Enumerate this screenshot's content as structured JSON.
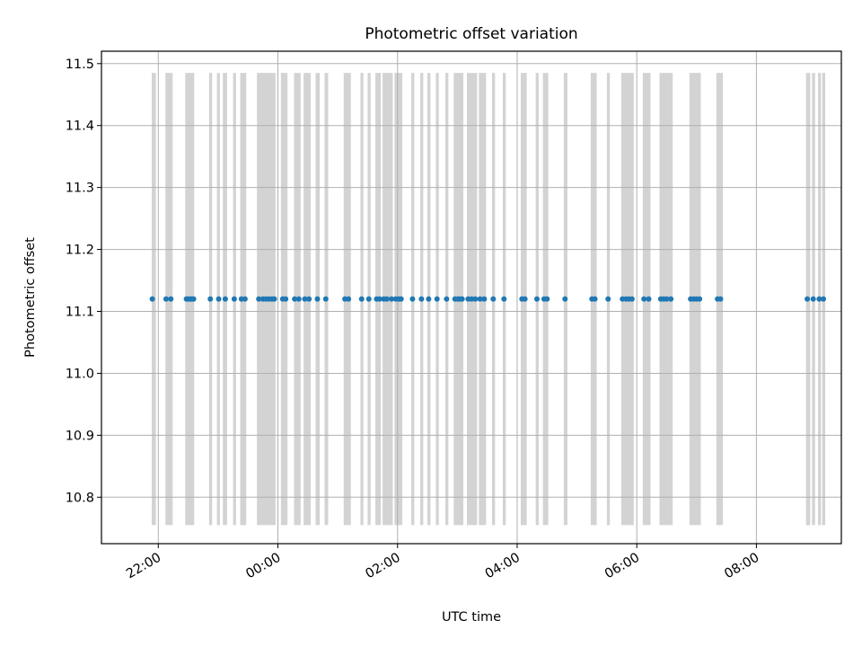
{
  "chart_data": {
    "type": "scatter",
    "title": "Photometric offset variation",
    "xlabel": "UTC time",
    "ylabel": "Photometric offset",
    "x_unit": "hours (UTC; values after 24 are the following day)",
    "xlim": [
      21.05,
      33.42
    ],
    "ylim": [
      10.725,
      11.52
    ],
    "grid": true,
    "x_ticks": [
      {
        "value": 22,
        "label": "22:00"
      },
      {
        "value": 24,
        "label": "00:00"
      },
      {
        "value": 26,
        "label": "02:00"
      },
      {
        "value": 28,
        "label": "04:00"
      },
      {
        "value": 30,
        "label": "06:00"
      },
      {
        "value": 32,
        "label": "08:00"
      }
    ],
    "y_ticks": [
      {
        "value": 10.8,
        "label": "10.8"
      },
      {
        "value": 10.9,
        "label": "10.9"
      },
      {
        "value": 11.0,
        "label": "11.0"
      },
      {
        "value": 11.1,
        "label": "11.1"
      },
      {
        "value": 11.2,
        "label": "11.2"
      },
      {
        "value": 11.3,
        "label": "11.3"
      },
      {
        "value": 11.4,
        "label": "11.4"
      },
      {
        "value": 11.5,
        "label": "11.5"
      }
    ],
    "band_range": [
      10.755,
      11.485
    ],
    "band_color": "#d3d3d3",
    "point_color": "#1f77b4",
    "series": [
      {
        "values": [
          [
            21.9,
            11.12
          ],
          [
            22.13,
            11.12
          ],
          [
            22.21,
            11.12
          ],
          [
            22.47,
            11.12
          ],
          [
            22.5,
            11.12
          ],
          [
            22.53,
            11.12
          ],
          [
            22.56,
            11.12
          ],
          [
            22.59,
            11.12
          ],
          [
            22.87,
            11.12
          ],
          [
            23.01,
            11.12
          ],
          [
            23.12,
            11.12
          ],
          [
            23.27,
            11.12
          ],
          [
            23.39,
            11.12
          ],
          [
            23.45,
            11.12
          ],
          [
            23.68,
            11.12
          ],
          [
            23.75,
            11.12
          ],
          [
            23.8,
            11.12
          ],
          [
            23.85,
            11.12
          ],
          [
            23.9,
            11.12
          ],
          [
            23.94,
            11.12
          ],
          [
            24.08,
            11.12
          ],
          [
            24.13,
            11.12
          ],
          [
            24.28,
            11.12
          ],
          [
            24.35,
            11.12
          ],
          [
            24.45,
            11.12
          ],
          [
            24.52,
            11.12
          ],
          [
            24.66,
            11.12
          ],
          [
            24.8,
            11.12
          ],
          [
            25.12,
            11.12
          ],
          [
            25.18,
            11.12
          ],
          [
            25.4,
            11.12
          ],
          [
            25.52,
            11.12
          ],
          [
            25.65,
            11.12
          ],
          [
            25.7,
            11.12
          ],
          [
            25.77,
            11.12
          ],
          [
            25.82,
            11.12
          ],
          [
            25.9,
            11.12
          ],
          [
            25.97,
            11.12
          ],
          [
            26.02,
            11.12
          ],
          [
            26.06,
            11.12
          ],
          [
            26.25,
            11.12
          ],
          [
            26.4,
            11.12
          ],
          [
            26.52,
            11.12
          ],
          [
            26.66,
            11.12
          ],
          [
            26.82,
            11.12
          ],
          [
            26.96,
            11.12
          ],
          [
            27.01,
            11.12
          ],
          [
            27.04,
            11.12
          ],
          [
            27.08,
            11.12
          ],
          [
            27.18,
            11.12
          ],
          [
            27.24,
            11.12
          ],
          [
            27.3,
            11.12
          ],
          [
            27.38,
            11.12
          ],
          [
            27.45,
            11.12
          ],
          [
            27.6,
            11.12
          ],
          [
            27.78,
            11.12
          ],
          [
            28.08,
            11.12
          ],
          [
            28.13,
            11.12
          ],
          [
            28.33,
            11.12
          ],
          [
            28.45,
            11.12
          ],
          [
            28.5,
            11.12
          ],
          [
            28.8,
            11.12
          ],
          [
            29.25,
            11.12
          ],
          [
            29.3,
            11.12
          ],
          [
            29.52,
            11.12
          ],
          [
            29.76,
            11.12
          ],
          [
            29.82,
            11.12
          ],
          [
            29.87,
            11.12
          ],
          [
            29.92,
            11.12
          ],
          [
            30.12,
            11.12
          ],
          [
            30.2,
            11.12
          ],
          [
            30.4,
            11.12
          ],
          [
            30.45,
            11.12
          ],
          [
            30.5,
            11.12
          ],
          [
            30.57,
            11.12
          ],
          [
            30.9,
            11.12
          ],
          [
            30.95,
            11.12
          ],
          [
            31.0,
            11.12
          ],
          [
            31.05,
            11.12
          ],
          [
            31.35,
            11.12
          ],
          [
            31.4,
            11.12
          ],
          [
            32.85,
            11.12
          ],
          [
            32.95,
            11.12
          ],
          [
            33.05,
            11.12
          ],
          [
            33.12,
            11.12
          ]
        ]
      }
    ],
    "bands": [
      [
        21.89,
        21.96
      ],
      [
        22.12,
        22.24
      ],
      [
        22.45,
        22.6
      ],
      [
        22.85,
        22.9
      ],
      [
        22.98,
        23.03
      ],
      [
        23.08,
        23.15
      ],
      [
        23.25,
        23.3
      ],
      [
        23.37,
        23.47
      ],
      [
        23.65,
        23.96
      ],
      [
        24.05,
        24.16
      ],
      [
        24.27,
        24.38
      ],
      [
        24.43,
        24.55
      ],
      [
        24.63,
        24.7
      ],
      [
        24.78,
        24.84
      ],
      [
        25.1,
        25.22
      ],
      [
        25.38,
        25.43
      ],
      [
        25.5,
        25.55
      ],
      [
        25.63,
        25.72
      ],
      [
        25.75,
        25.92
      ],
      [
        25.95,
        26.08
      ],
      [
        26.23,
        26.28
      ],
      [
        26.38,
        26.43
      ],
      [
        26.5,
        26.55
      ],
      [
        26.64,
        26.69
      ],
      [
        26.8,
        26.85
      ],
      [
        26.94,
        27.1
      ],
      [
        27.16,
        27.33
      ],
      [
        27.36,
        27.48
      ],
      [
        27.58,
        27.63
      ],
      [
        27.76,
        27.81
      ],
      [
        28.06,
        28.16
      ],
      [
        28.31,
        28.36
      ],
      [
        28.43,
        28.52
      ],
      [
        28.78,
        28.84
      ],
      [
        29.23,
        29.33
      ],
      [
        29.5,
        29.55
      ],
      [
        29.74,
        29.95
      ],
      [
        30.1,
        30.23
      ],
      [
        30.38,
        30.6
      ],
      [
        30.88,
        31.07
      ],
      [
        31.33,
        31.44
      ],
      [
        32.83,
        32.9
      ],
      [
        32.93,
        32.98
      ],
      [
        33.03,
        33.08
      ],
      [
        33.1,
        33.15
      ]
    ]
  }
}
